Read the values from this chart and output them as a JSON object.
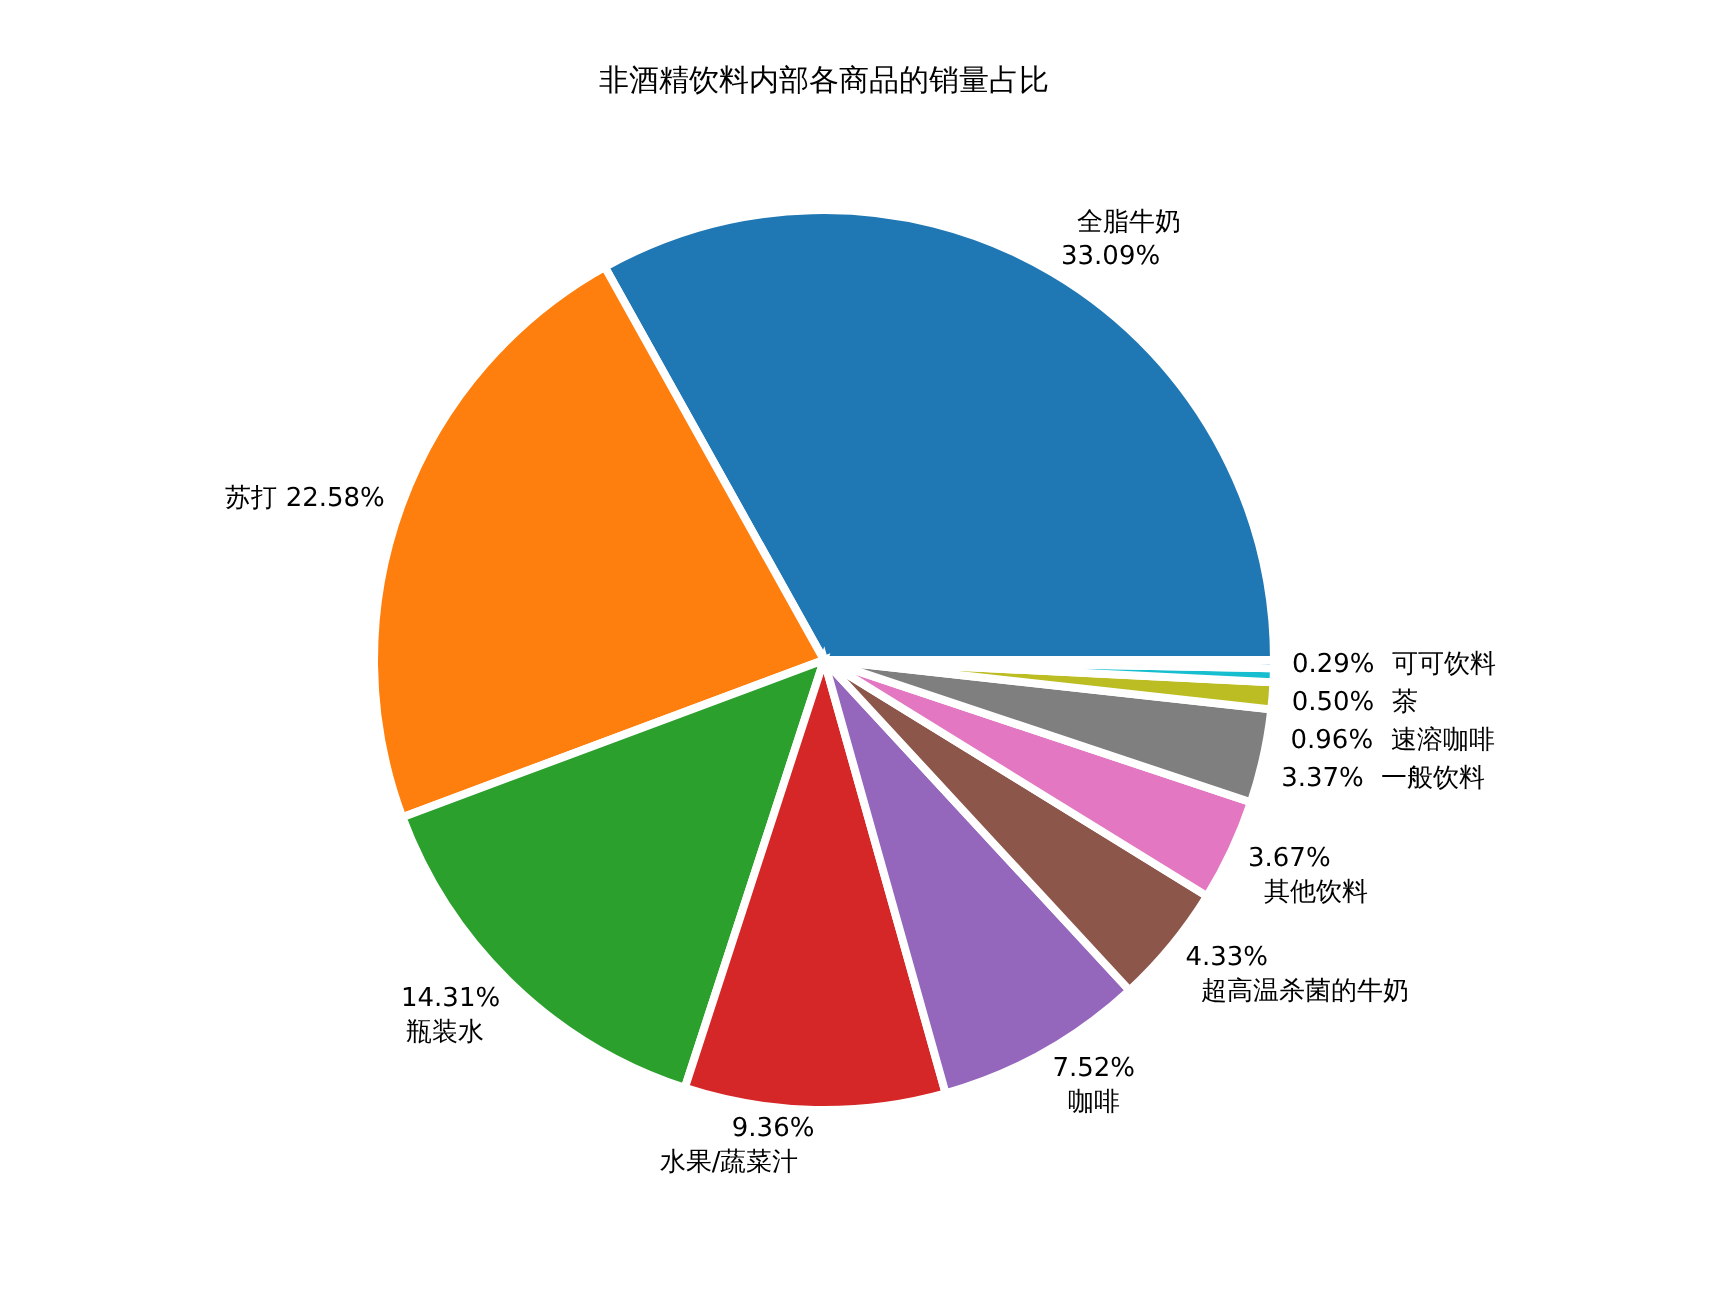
{
  "chart_data": {
    "type": "pie",
    "title": "非酒精饮料内部各商品的销量占比",
    "categories": [
      "全脂牛奶",
      "苏打",
      "瓶装水",
      "水果/蔬菜汁",
      "咖啡",
      "超高温杀菌的牛奶",
      "其他饮料",
      "一般饮料",
      "速溶咖啡",
      "茶",
      "可可饮料"
    ],
    "values": [
      33.09,
      22.58,
      14.31,
      9.36,
      7.52,
      4.33,
      3.67,
      3.37,
      0.96,
      0.5,
      0.29
    ],
    "value_labels": [
      "33.09%",
      "22.58%",
      "14.31%",
      "9.36%",
      "7.52%",
      "4.33%",
      "3.67%",
      "3.37%",
      "0.96%",
      "0.50%",
      "0.29%"
    ],
    "colors": [
      "#1f77b4",
      "#ff7f0e",
      "#2ca02c",
      "#d62728",
      "#9467bd",
      "#8c564b",
      "#e377c2",
      "#7f7f7f",
      "#bcbd22",
      "#17becf",
      "#1f77b4"
    ]
  }
}
